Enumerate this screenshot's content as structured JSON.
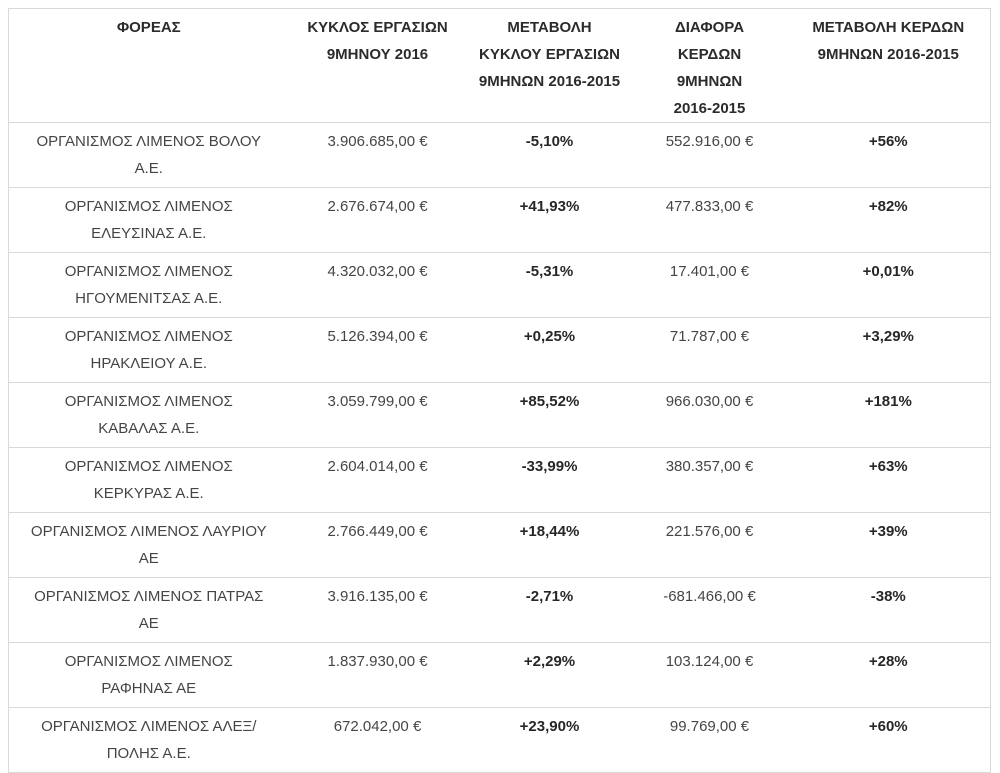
{
  "colors": {
    "background": "#ffffff",
    "border": "#d9d9d9",
    "text_regular": "#454545",
    "text_bold": "#272727"
  },
  "table": {
    "header": [
      "ΦΟΡΕΑΣ",
      "ΚΥΚΛΟΣ  ΕΡΓΑΣΙΩΝ\n9ΜΗΝΟΥ 2016",
      "ΜΕΤΑΒΟΛΗ\nΚΥΚΛΟΥ ΕΡΓΑΣΙΩΝ\n9ΜΗΝΩΝ 2016-2015",
      "ΔΙΑΦΟΡΑ\nΚΕΡΔΩΝ\n9ΜΗΝΩΝ\n2016-2015",
      "ΜΕΤΑΒΟΛΗ ΚΕΡΔΩΝ\n9ΜΗΝΩΝ 2016-2015"
    ],
    "rows": [
      {
        "organization": "ΟΡΓΑΝΙΣΜΟΣ ΛΙΜΕΝΟΣ ΒΟΛΟΥ\nΑ.Ε.",
        "turnover_9m_2016": "3.906.685,00 €",
        "turnover_change": "-5,10%",
        "profit_diff": "552.916,00 €",
        "profit_change": "+56%"
      },
      {
        "organization": "ΟΡΓΑΝΙΣΜΟΣ ΛΙΜΕΝΟΣ\nΕΛΕΥΣΙΝΑΣ Α.Ε.",
        "turnover_9m_2016": "2.676.674,00 €",
        "turnover_change": "+41,93%",
        "profit_diff": "477.833,00 €",
        "profit_change": "+82%"
      },
      {
        "organization": "ΟΡΓΑΝΙΣΜΟΣ ΛΙΜΕΝΟΣ\nΗΓΟΥΜΕΝΙΤΣΑΣ Α.Ε.",
        "turnover_9m_2016": "4.320.032,00 €",
        "turnover_change": "-5,31%",
        "profit_diff": "17.401,00 €",
        "profit_change": "+0,01%"
      },
      {
        "organization": "ΟΡΓΑΝΙΣΜΟΣ ΛΙΜΕΝΟΣ\nΗΡΑΚΛΕΙΟΥ Α.Ε.",
        "turnover_9m_2016": "5.126.394,00 €",
        "turnover_change": "+0,25%",
        "profit_diff": "71.787,00 €",
        "profit_change": "+3,29%"
      },
      {
        "organization": "ΟΡΓΑΝΙΣΜΟΣ ΛΙΜΕΝΟΣ\nΚΑΒΑΛΑΣ Α.Ε.",
        "turnover_9m_2016": "3.059.799,00 €",
        "turnover_change": "+85,52%",
        "profit_diff": "966.030,00 €",
        "profit_change": "+181%"
      },
      {
        "organization": "ΟΡΓΑΝΙΣΜΟΣ ΛΙΜΕΝΟΣ\nΚΕΡΚΥΡΑΣ Α.Ε.",
        "turnover_9m_2016": "2.604.014,00 €",
        "turnover_change": "-33,99%",
        "profit_diff": "380.357,00 €",
        "profit_change": "+63%"
      },
      {
        "organization": "ΟΡΓΑΝΙΣΜΟΣ ΛΙΜΕΝΟΣ ΛΑΥΡΙΟΥ\nΑΕ",
        "turnover_9m_2016": "2.766.449,00 €",
        "turnover_change": "+18,44%",
        "profit_diff": "221.576,00 €",
        "profit_change": "+39%"
      },
      {
        "organization": "ΟΡΓΑΝΙΣΜΟΣ ΛΙΜΕΝΟΣ ΠΑΤΡΑΣ\nΑΕ",
        "turnover_9m_2016": "3.916.135,00 €",
        "turnover_change": "-2,71%",
        "profit_diff": "-681.466,00 €",
        "profit_change": "-38%"
      },
      {
        "organization": "ΟΡΓΑΝΙΣΜΟΣ ΛΙΜΕΝΟΣ\nΡΑΦΗΝΑΣ  ΑΕ",
        "turnover_9m_2016": "1.837.930,00 €",
        "turnover_change": "+2,29%",
        "profit_diff": "103.124,00 €",
        "profit_change": "+28%"
      },
      {
        "organization": "ΟΡΓΑΝΙΣΜΟΣ ΛΙΜΕΝΟΣ ΑΛΕΞ/\nΠΟΛΗΣ Α.Ε.",
        "turnover_9m_2016": "672.042,00 €",
        "turnover_change": "+23,90%",
        "profit_diff": "99.769,00 €",
        "profit_change": "+60%"
      }
    ]
  }
}
